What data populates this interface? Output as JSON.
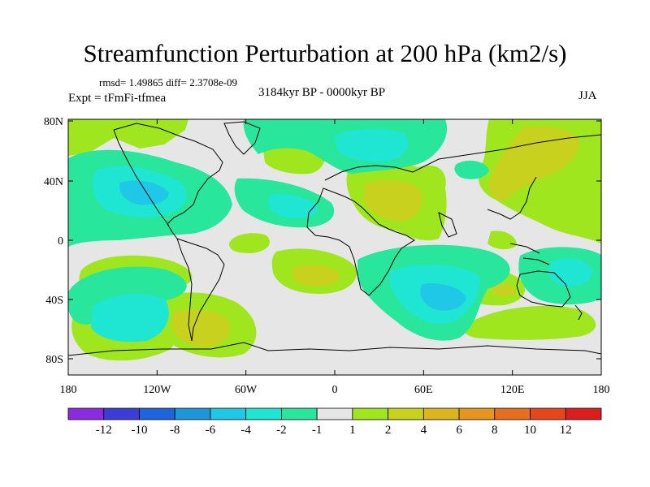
{
  "title": "Streamfunction Perturbation at 200 hPa (km2/s)",
  "stats": "rmsd= 1.49865 diff= 2.3708e-09",
  "period": "3184kyr BP - 0000kyr BP",
  "experiment": "Expt = tFmFi-tfmea",
  "season": "JJA",
  "lon_ticks": [
    "180",
    "120W",
    "60W",
    "0",
    "60E",
    "120E",
    "180"
  ],
  "lat_ticks": [
    "80N",
    "40N",
    "0",
    "40S",
    "80S"
  ],
  "colorbar": {
    "labels": [
      "-12",
      "-10",
      "-8",
      "-6",
      "-4",
      "-2",
      "-1",
      "1",
      "2",
      "4",
      "6",
      "8",
      "10",
      "12"
    ],
    "colors": [
      "#8a2be2",
      "#3c3cd8",
      "#1e64dc",
      "#1e96dc",
      "#1ec8e6",
      "#1ee6d2",
      "#28e69b",
      "#e6e6e6",
      "#a0e61e",
      "#c8d21e",
      "#dcb41e",
      "#e6961e",
      "#e66e1e",
      "#e6461e",
      "#dc1e1e"
    ]
  }
}
